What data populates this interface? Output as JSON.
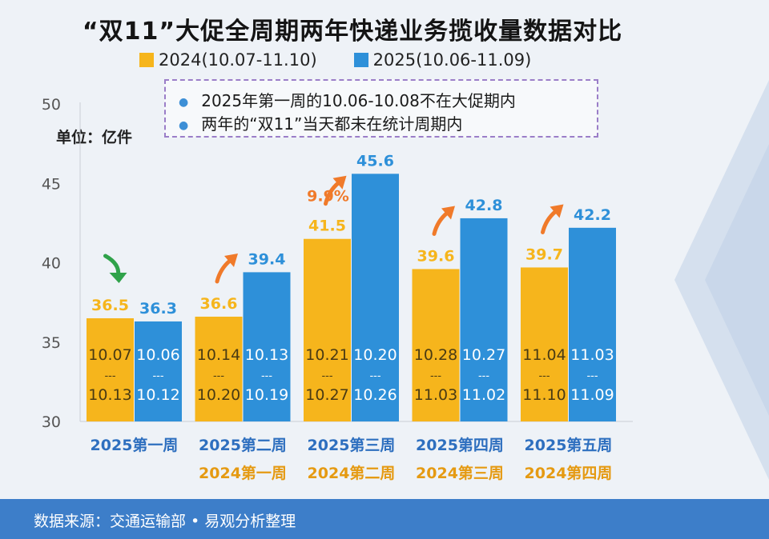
{
  "colors": {
    "y2024": "#f6b51c",
    "y2025": "#2e90d9",
    "up_arrow": "#f07a2a",
    "down_arrow": "#2fa24a",
    "footer_bg": "#3d7ec9"
  },
  "header": {
    "title": "“双11”大促全周期两年快递业务揽收量数据对比"
  },
  "legend": {
    "y2024": "2024(10.07-11.10)",
    "y2025": "2025(10.06-11.09)"
  },
  "notes": {
    "line1": "2025年第一周的10.06-10.08不在大促期内",
    "line2": "两年的“双11”当天都未在统计周期内"
  },
  "unit": "单位：亿件",
  "footer": {
    "source": "数据来源：交通运输部 • 易观分析整理"
  },
  "chart_data": {
    "type": "bar",
    "ylim": [
      30,
      50
    ],
    "yticks": [
      "30",
      "35",
      "40",
      "45",
      "50"
    ],
    "categories": [
      "2025第一周",
      "2025第二周",
      "2025第三周",
      "2025第四周",
      "2025第五周"
    ],
    "categories_2024": [
      "",
      "2024第一周",
      "2024第二周",
      "2024第三周",
      "2024第四周"
    ],
    "series": [
      {
        "name": "2024(10.07-11.10)",
        "values": [
          36.5,
          36.6,
          41.5,
          39.6,
          39.7
        ],
        "labels": [
          "36.5",
          "36.6",
          "41.5",
          "39.6",
          "39.7"
        ],
        "range_start": [
          "10.07",
          "10.14",
          "10.21",
          "10.28",
          "11.04"
        ],
        "range_end": [
          "10.13",
          "10.20",
          "10.27",
          "11.03",
          "11.10"
        ]
      },
      {
        "name": "2025(10.06-11.09)",
        "values": [
          36.3,
          39.4,
          45.6,
          42.8,
          42.2
        ],
        "labels": [
          "36.3",
          "39.4",
          "45.6",
          "42.8",
          "42.2"
        ],
        "range_start": [
          "10.06",
          "10.13",
          "10.20",
          "10.27",
          "11.03"
        ],
        "range_end": [
          "10.12",
          "10.19",
          "10.26",
          "11.02",
          "11.09"
        ]
      }
    ],
    "range_separator": "---",
    "trend": [
      "down",
      "up",
      "up",
      "up",
      "up"
    ],
    "annotation": {
      "week_index": 2,
      "text": "9.9%"
    }
  }
}
